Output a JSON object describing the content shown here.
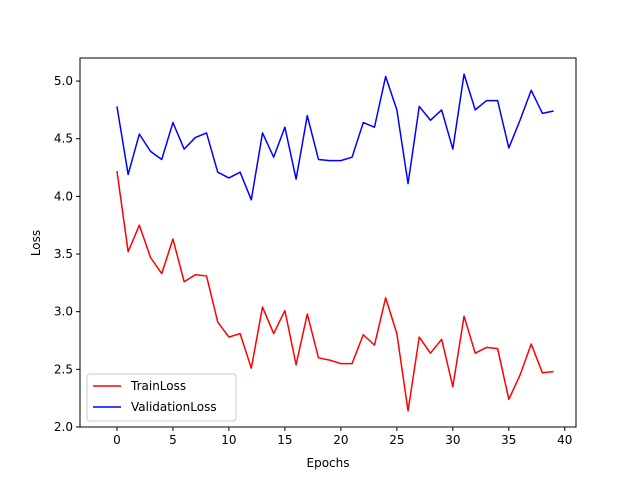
{
  "chart_data": {
    "type": "line",
    "title": "",
    "xlabel": "Epochs",
    "ylabel": "Loss",
    "xlim": [
      -3.3,
      41.0
    ],
    "ylim": [
      2.0,
      5.2
    ],
    "xticks": [
      0,
      5,
      10,
      15,
      20,
      25,
      30,
      35,
      40
    ],
    "yticks": [
      2.0,
      2.5,
      3.0,
      3.5,
      4.0,
      4.5,
      5.0
    ],
    "xtick_labels": [
      "0",
      "5",
      "10",
      "15",
      "20",
      "25",
      "30",
      "35",
      "40"
    ],
    "ytick_labels": [
      "2.0",
      "2.5",
      "3.0",
      "3.5",
      "4.0",
      "4.5",
      "5.0"
    ],
    "grid": false,
    "legend_position": "lower-left",
    "x": [
      0,
      1,
      2,
      3,
      4,
      5,
      6,
      7,
      8,
      9,
      10,
      11,
      12,
      13,
      14,
      15,
      16,
      17,
      18,
      19,
      20,
      21,
      22,
      23,
      24,
      25,
      26,
      27,
      28,
      29,
      30,
      31,
      32,
      33,
      34,
      35,
      36,
      37,
      38,
      39
    ],
    "series": [
      {
        "name": "TrainLoss",
        "color": "#ff0000",
        "values": [
          4.22,
          3.52,
          3.75,
          3.47,
          3.33,
          3.63,
          3.26,
          3.32,
          3.31,
          2.91,
          2.78,
          2.81,
          2.51,
          3.04,
          2.81,
          3.01,
          2.54,
          2.98,
          2.6,
          2.58,
          2.55,
          2.55,
          2.8,
          2.71,
          3.12,
          2.81,
          2.14,
          2.78,
          2.64,
          2.76,
          2.35,
          2.96,
          2.64,
          2.69,
          2.68,
          2.24,
          2.45,
          2.72,
          2.47,
          2.48
        ]
      },
      {
        "name": "ValidationLoss",
        "color": "#0000ff",
        "values": [
          4.78,
          4.19,
          4.54,
          4.39,
          4.32,
          4.64,
          4.41,
          4.51,
          4.55,
          4.21,
          4.16,
          4.21,
          3.97,
          4.55,
          4.34,
          4.6,
          4.15,
          4.7,
          4.32,
          4.31,
          4.31,
          4.34,
          4.64,
          4.6,
          5.04,
          4.75,
          4.11,
          4.78,
          4.66,
          4.75,
          4.41,
          5.06,
          4.75,
          4.83,
          4.83,
          4.42,
          4.66,
          4.92,
          4.72,
          4.74
        ]
      }
    ]
  }
}
